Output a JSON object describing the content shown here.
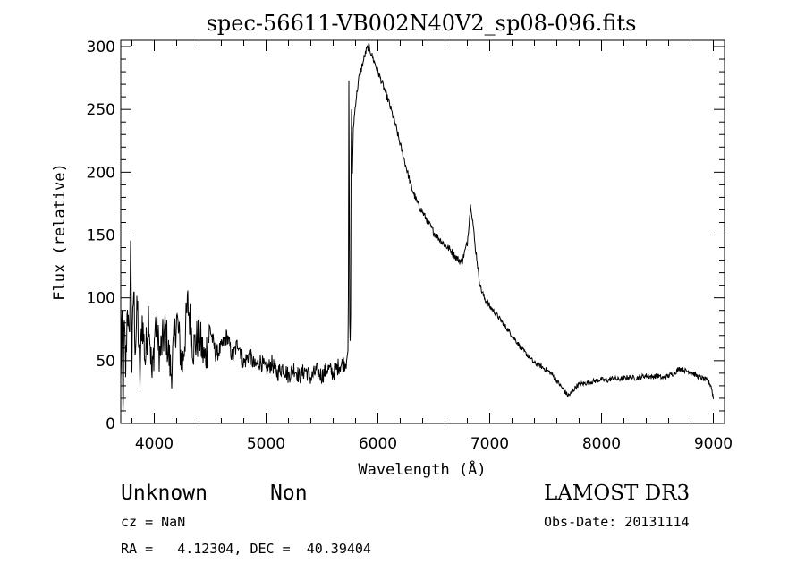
{
  "chart_data": {
    "type": "line",
    "title": "spec-56611-VB002N40V2_sp08-096.fits",
    "xlabel": "Wavelength (Å)",
    "ylabel": "Flux (relative)",
    "xlim": [
      3700,
      9100
    ],
    "ylim": [
      0,
      305
    ],
    "xticks": [
      4000,
      5000,
      6000,
      7000,
      8000,
      9000
    ],
    "yticks": [
      0,
      50,
      100,
      150,
      200,
      250,
      300
    ],
    "line_color": "#000000",
    "grid": false,
    "series": [
      {
        "x": [
          3700,
          3710,
          3720,
          3730,
          3745,
          3760,
          3775,
          3790,
          3800,
          3815,
          3830,
          3850,
          3870,
          3890,
          3920,
          3950,
          3980,
          4010,
          4050,
          4100,
          4150,
          4200,
          4250,
          4300,
          4350,
          4400,
          4450,
          4500,
          4550,
          4600,
          4650,
          4700,
          4750,
          4800,
          4850,
          4900,
          4950,
          5000,
          5050,
          5100,
          5150,
          5200,
          5250,
          5300,
          5350,
          5400,
          5450,
          5500,
          5550,
          5600,
          5650,
          5700,
          5720,
          5735,
          5740,
          5748,
          5755,
          5762,
          5770,
          5780,
          5800,
          5830,
          5860,
          5880,
          5900,
          5920,
          5950,
          6000,
          6050,
          6100,
          6150,
          6200,
          6250,
          6300,
          6350,
          6400,
          6450,
          6500,
          6550,
          6600,
          6650,
          6700,
          6750,
          6800,
          6830,
          6850,
          6870,
          6880,
          6890,
          6900,
          6920,
          6950,
          7000,
          7050,
          7100,
          7150,
          7200,
          7250,
          7300,
          7350,
          7400,
          7450,
          7500,
          7550,
          7600,
          7650,
          7700,
          7730,
          7760,
          7780,
          7800,
          7850,
          7900,
          7950,
          8000,
          8050,
          8100,
          8150,
          8200,
          8250,
          8300,
          8350,
          8400,
          8450,
          8500,
          8550,
          8600,
          8650,
          8700,
          8750,
          8800,
          8850,
          8900,
          8950,
          8980,
          9000
        ],
        "y": [
          30,
          90,
          2,
          80,
          40,
          100,
          55,
          150,
          45,
          110,
          60,
          95,
          30,
          85,
          50,
          90,
          35,
          80,
          55,
          75,
          40,
          85,
          45,
          95,
          60,
          70,
          50,
          75,
          55,
          60,
          70,
          52,
          65,
          48,
          55,
          45,
          50,
          42,
          48,
          40,
          45,
          38,
          44,
          37,
          43,
          36,
          42,
          38,
          44,
          40,
          46,
          48,
          50,
          60,
          273,
          80,
          55,
          270,
          190,
          235,
          255,
          275,
          285,
          292,
          298,
          300,
          292,
          280,
          268,
          255,
          240,
          222,
          205,
          188,
          176,
          168,
          160,
          152,
          147,
          142,
          138,
          132,
          128,
          144,
          175,
          160,
          140,
          135,
          128,
          118,
          108,
          100,
          93,
          88,
          82,
          76,
          70,
          64,
          58,
          53,
          48,
          46,
          43,
          40,
          34,
          28,
          22,
          24,
          28,
          30,
          31,
          32,
          33,
          34,
          35,
          34,
          36,
          35,
          36,
          37,
          36,
          37,
          38,
          37,
          38,
          36,
          38,
          40,
          44,
          42,
          41,
          38,
          36,
          34,
          30,
          20
        ]
      }
    ]
  },
  "info": {
    "object_class": "Unknown",
    "object_subclass": "Non",
    "cz": "cz = NaN",
    "coords": "RA =   4.12304, DEC =  40.39404",
    "survey": "LAMOST DR3",
    "obs_date": "Obs-Date: 20131114"
  }
}
